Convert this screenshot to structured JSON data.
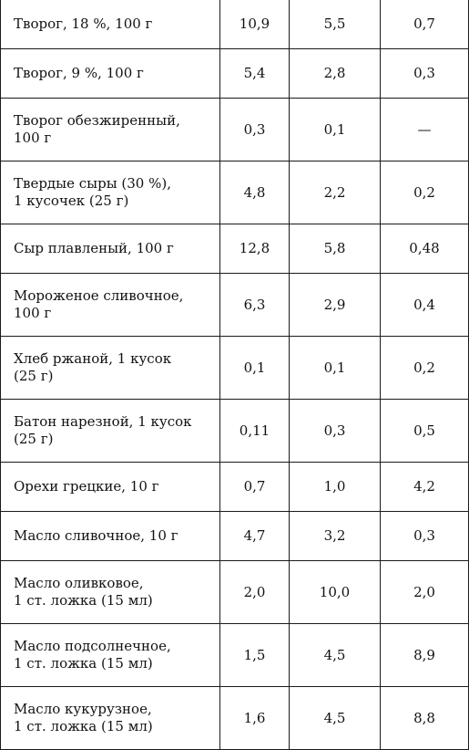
{
  "table": {
    "rows": [
      {
        "name": "Творог, 18 %, 100 г",
        "v1": "10,9",
        "v2": "5,5",
        "v3": "0,7"
      },
      {
        "name": "Творог, 9 %, 100 г",
        "v1": "5,4",
        "v2": "2,8",
        "v3": "0,3"
      },
      {
        "name": "Творог обезжиренный,\n100 г",
        "v1": "0,3",
        "v2": "0,1",
        "v3": "—"
      },
      {
        "name": "Твердые сыры (30 %),\n1 кусочек (25 г)",
        "v1": "4,8",
        "v2": "2,2",
        "v3": "0,2"
      },
      {
        "name": "Сыр плавленый, 100 г",
        "v1": "12,8",
        "v2": "5,8",
        "v3": "0,48"
      },
      {
        "name": "Мороженое сливочное,\n100 г",
        "v1": "6,3",
        "v2": "2,9",
        "v3": "0,4"
      },
      {
        "name": "Хлеб ржаной, 1 кусок\n(25 г)",
        "v1": "0,1",
        "v2": "0,1",
        "v3": "0,2"
      },
      {
        "name": "Батон нарезной, 1 кусок\n(25 г)",
        "v1": "0,11",
        "v2": "0,3",
        "v3": "0,5"
      },
      {
        "name": "Орехи грецкие, 10 г",
        "v1": "0,7",
        "v2": "1,0",
        "v3": "4,2"
      },
      {
        "name": "Масло сливочное, 10 г",
        "v1": "4,7",
        "v2": "3,2",
        "v3": "0,3"
      },
      {
        "name": "Масло оливковое,\n1 ст. ложка (15 мл)",
        "v1": "2,0",
        "v2": "10,0",
        "v3": "2,0"
      },
      {
        "name": "Масло подсолнечное,\n1 ст. ложка (15 мл)",
        "v1": "1,5",
        "v2": "4,5",
        "v3": "8,9"
      },
      {
        "name": "Масло кукурузное,\n1 ст. ложка (15 мл)",
        "v1": "1,6",
        "v2": "4,5",
        "v3": "8,8"
      }
    ]
  }
}
